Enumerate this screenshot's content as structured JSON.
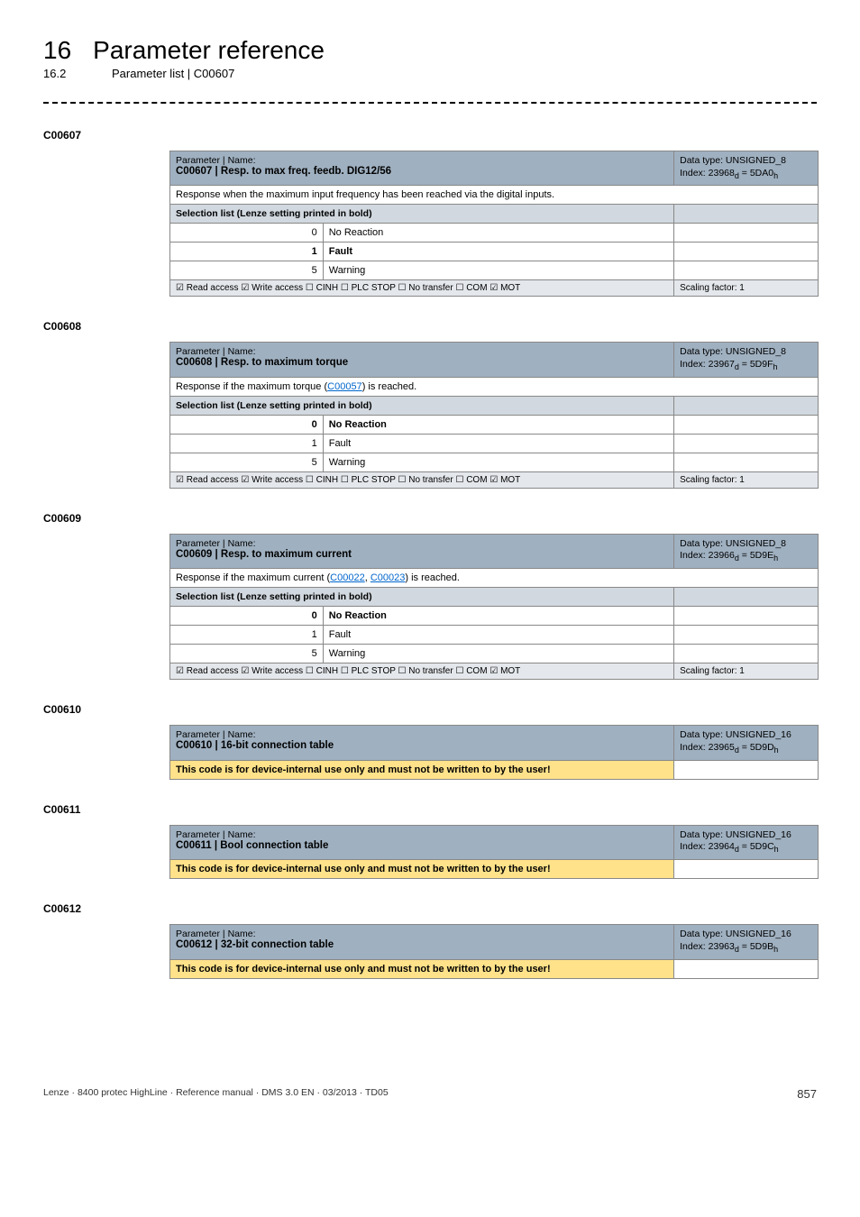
{
  "chapter": {
    "num": "16",
    "title": "Parameter reference"
  },
  "section": {
    "num": "16.2",
    "title": "Parameter list | C00607"
  },
  "p607": {
    "anchor": "C00607",
    "name_label": "Parameter | Name:",
    "name": "C00607 | Resp. to max freq. feedb. DIG12/56",
    "dtype": "Data type: UNSIGNED_8",
    "index_pre": "Index: 23968",
    "index_sub1": "d",
    "index_mid": " = 5DA0",
    "index_sub2": "h",
    "desc": "Response when the maximum input frequency has been reached via the digital inputs.",
    "sel_header": "Selection list (Lenze setting printed in bold)",
    "rows": [
      {
        "idx": "0",
        "val": "No Reaction",
        "bold": false
      },
      {
        "idx": "1",
        "val": "Fault",
        "bold": true
      },
      {
        "idx": "5",
        "val": "Warning",
        "bold": false
      }
    ],
    "flags": "☑ Read access   ☑ Write access   ☐ CINH   ☐ PLC STOP   ☐ No transfer   ☐ COM   ☑ MOT",
    "scaling": "Scaling factor: 1"
  },
  "p608": {
    "anchor": "C00608",
    "name_label": "Parameter | Name:",
    "name": "C00608 | Resp. to maximum torque",
    "dtype": "Data type: UNSIGNED_8",
    "index_pre": "Index: 23967",
    "index_sub1": "d",
    "index_mid": " = 5D9F",
    "index_sub2": "h",
    "desc_pre": "Response if the maximum torque (",
    "desc_link": "C00057",
    "desc_post": ") is reached.",
    "sel_header": "Selection list (Lenze setting printed in bold)",
    "rows": [
      {
        "idx": "0",
        "val": "No Reaction",
        "bold": true
      },
      {
        "idx": "1",
        "val": "Fault",
        "bold": false
      },
      {
        "idx": "5",
        "val": "Warning",
        "bold": false
      }
    ],
    "flags": "☑ Read access   ☑ Write access   ☐ CINH   ☐ PLC STOP   ☐ No transfer   ☐ COM   ☑ MOT",
    "scaling": "Scaling factor: 1"
  },
  "p609": {
    "anchor": "C00609",
    "name_label": "Parameter | Name:",
    "name": "C00609 | Resp. to maximum current",
    "dtype": "Data type: UNSIGNED_8",
    "index_pre": "Index: 23966",
    "index_sub1": "d",
    "index_mid": " = 5D9E",
    "index_sub2": "h",
    "desc_pre": "Response if the maximum current (",
    "desc_link1": "C00022",
    "desc_mid": ", ",
    "desc_link2": "C00023",
    "desc_post": ") is reached.",
    "sel_header": "Selection list (Lenze setting printed in bold)",
    "rows": [
      {
        "idx": "0",
        "val": "No Reaction",
        "bold": true
      },
      {
        "idx": "1",
        "val": "Fault",
        "bold": false
      },
      {
        "idx": "5",
        "val": "Warning",
        "bold": false
      }
    ],
    "flags": "☑ Read access   ☑ Write access   ☐ CINH   ☐ PLC STOP   ☐ No transfer   ☐ COM   ☑ MOT",
    "scaling": "Scaling factor: 1"
  },
  "p610": {
    "anchor": "C00610",
    "name_label": "Parameter | Name:",
    "name": "C00610 | 16-bit connection table",
    "dtype": "Data type: UNSIGNED_16",
    "index_pre": "Index: 23965",
    "index_sub1": "d",
    "index_mid": " = 5D9D",
    "index_sub2": "h",
    "warn": "This code is for device-internal use only and must not be written to by the user!"
  },
  "p611": {
    "anchor": "C00611",
    "name_label": "Parameter | Name:",
    "name": "C00611 | Bool connection table",
    "dtype": "Data type: UNSIGNED_16",
    "index_pre": "Index: 23964",
    "index_sub1": "d",
    "index_mid": " = 5D9C",
    "index_sub2": "h",
    "warn": "This code is for device-internal use only and must not be written to by the user!"
  },
  "p612": {
    "anchor": "C00612",
    "name_label": "Parameter | Name:",
    "name": "C00612 | 32-bit connection table",
    "dtype": "Data type: UNSIGNED_16",
    "index_pre": "Index: 23963",
    "index_sub1": "d",
    "index_mid": " = 5D9B",
    "index_sub2": "h",
    "warn": "This code is for device-internal use only and must not be written to by the user!"
  },
  "footer": {
    "left": "Lenze · 8400 protec HighLine · Reference manual · DMS 3.0 EN · 03/2013 · TD05",
    "page": "857"
  }
}
